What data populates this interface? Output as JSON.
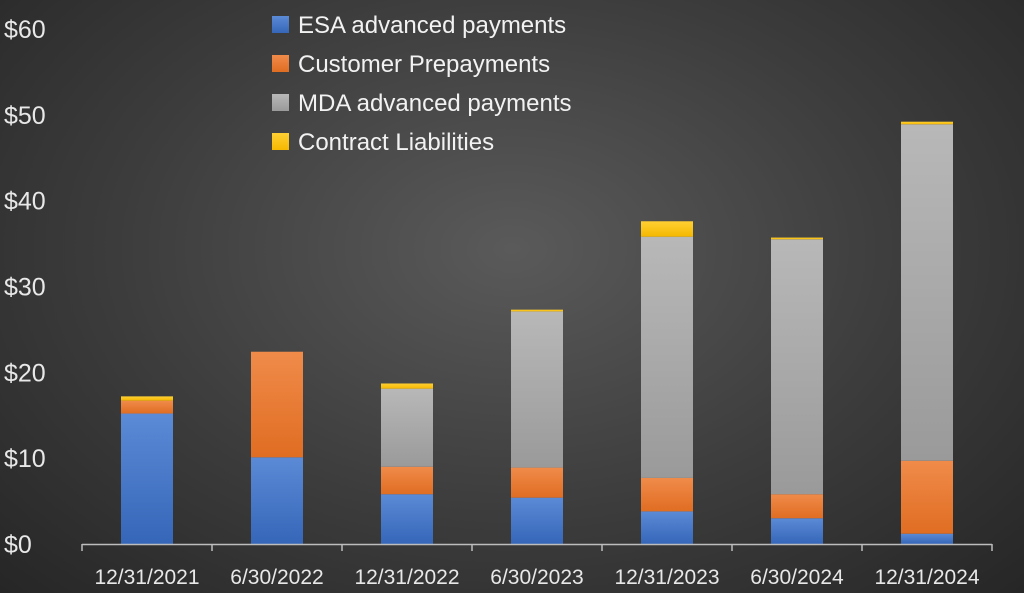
{
  "chart_data": {
    "type": "bar",
    "stacked": true,
    "categories": [
      "12/31/2021",
      "6/30/2022",
      "12/31/2022",
      "6/30/2023",
      "12/31/2023",
      "6/30/2024",
      "12/31/2024"
    ],
    "series": [
      {
        "name": "ESA advanced payments",
        "color": "#4472c4",
        "values": [
          15.2,
          10.1,
          5.8,
          5.4,
          3.8,
          3.0,
          1.2
        ]
      },
      {
        "name": "Customer Prepayments",
        "color": "#ed7d31",
        "values": [
          1.5,
          12.3,
          3.2,
          3.5,
          3.9,
          2.8,
          8.5
        ]
      },
      {
        "name": "MDA advanced payments",
        "color": "#a5a5a5",
        "values": [
          0.0,
          0.0,
          9.1,
          18.2,
          28.1,
          29.7,
          39.2
        ]
      },
      {
        "name": "Contract Liabilities",
        "color": "#ffc000",
        "values": [
          0.5,
          0.0,
          0.6,
          0.2,
          1.8,
          0.2,
          0.3
        ]
      }
    ],
    "y_tick_labels": [
      "$0",
      "$10",
      "$20",
      "$30",
      "$40",
      "$50",
      "$60"
    ],
    "ylim": [
      0,
      60
    ],
    "legend_position": "top-center",
    "grid": false
  }
}
